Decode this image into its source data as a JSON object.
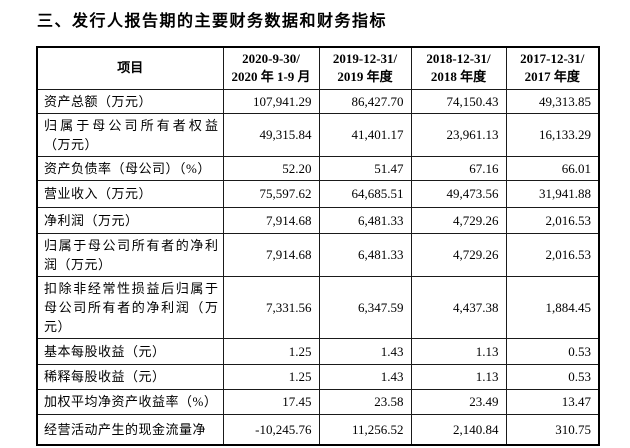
{
  "page": {
    "title": "三、发行人报告期的主要财务数据和财务指标"
  },
  "table": {
    "header": {
      "item_label": "项目",
      "periods": [
        {
          "line1": "2020-9-30/",
          "line2": "2020 年 1-9 月"
        },
        {
          "line1": "2019-12-31/",
          "line2": "2019 年度"
        },
        {
          "line1": "2018-12-31/",
          "line2": "2018 年度"
        },
        {
          "line1": "2017-12-31/",
          "line2": "2017 年度"
        }
      ]
    },
    "rows": [
      {
        "label": "资产总额（万元）",
        "values": [
          "107,941.29",
          "86,427.70",
          "74,150.43",
          "49,313.85"
        ]
      },
      {
        "label": "归属于母公司所有者权益（万元）",
        "values": [
          "49,315.84",
          "41,401.17",
          "23,961.13",
          "16,133.29"
        ]
      },
      {
        "label": "资产负债率（母公司）（%）",
        "values": [
          "52.20",
          "51.47",
          "67.16",
          "66.01"
        ]
      },
      {
        "label": "营业收入（万元）",
        "values": [
          "75,597.62",
          "64,685.51",
          "49,473.56",
          "31,941.88"
        ]
      },
      {
        "label": "净利润（万元）",
        "values": [
          "7,914.68",
          "6,481.33",
          "4,729.26",
          "2,016.53"
        ]
      },
      {
        "label": "归属于母公司所有者的净利润（万元）",
        "values": [
          "7,914.68",
          "6,481.33",
          "4,729.26",
          "2,016.53"
        ]
      },
      {
        "label": "扣除非经常性损益后归属于母公司所有者的净利润（万元）",
        "values": [
          "7,331.56",
          "6,347.59",
          "4,437.38",
          "1,884.45"
        ]
      },
      {
        "label": "基本每股收益（元）",
        "values": [
          "1.25",
          "1.43",
          "1.13",
          "0.53"
        ]
      },
      {
        "label": "稀释每股收益（元）",
        "values": [
          "1.25",
          "1.43",
          "1.13",
          "0.53"
        ]
      },
      {
        "label": "加权平均净资产收益率（%）",
        "values": [
          "17.45",
          "23.58",
          "23.49",
          "13.47"
        ]
      },
      {
        "label": "经营活动产生的现金流量净",
        "values": [
          "-10,245.76",
          "11,256.52",
          "2,140.84",
          "310.75"
        ]
      }
    ]
  },
  "colors": {
    "background": "#ffffff",
    "text": "#000000",
    "border": "#000000"
  }
}
